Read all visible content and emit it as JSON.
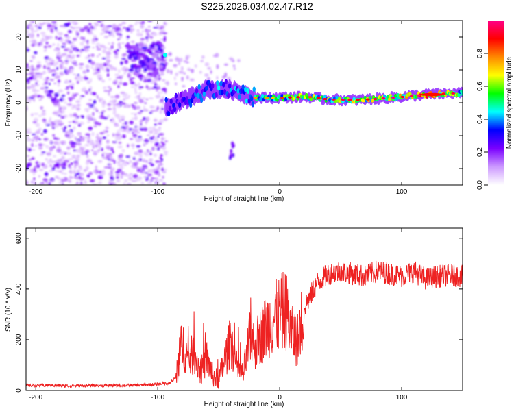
{
  "title": "S225.2026.034.02.47.R12",
  "chart_data": [
    {
      "type": "heatmap",
      "xlabel": "Height of straight line (km)",
      "ylabel": "Frequency (Hz)",
      "xlim": [
        -208,
        150
      ],
      "ylim": [
        -25,
        25
      ],
      "x_ticks": [
        -200,
        -100,
        0,
        100
      ],
      "y_ticks": [
        20,
        10,
        0,
        -10,
        -20
      ],
      "colorbar": {
        "label": "Normalized spectral amplitude",
        "range": [
          0.0,
          1.0
        ],
        "ticks": [
          0.0,
          0.2,
          0.4,
          0.6,
          0.8
        ],
        "colors": [
          "#ffffff",
          "#cc99ff",
          "#7a00ff",
          "#0000ff",
          "#00ffff",
          "#00ff00",
          "#ffff00",
          "#ff8800",
          "#ff0000",
          "#ff0088"
        ]
      },
      "ridge": [
        {
          "x": -93,
          "y": -1.5,
          "amp": 0.35
        },
        {
          "x": -80,
          "y": 0.5,
          "amp": 0.3
        },
        {
          "x": -60,
          "y": 4,
          "amp": 0.45
        },
        {
          "x": -40,
          "y": 4,
          "amp": 0.4
        },
        {
          "x": -20,
          "y": 1.5,
          "amp": 0.5
        },
        {
          "x": 0,
          "y": 1.5,
          "amp": 0.6
        },
        {
          "x": 20,
          "y": 1.8,
          "amp": 0.65
        },
        {
          "x": 40,
          "y": 1,
          "amp": 0.65
        },
        {
          "x": 60,
          "y": 0.8,
          "amp": 0.7
        },
        {
          "x": 80,
          "y": 1.2,
          "amp": 0.7
        },
        {
          "x": 100,
          "y": 1.8,
          "amp": 0.75
        },
        {
          "x": 120,
          "y": 2.5,
          "amp": 0.9
        },
        {
          "x": 150,
          "y": 3,
          "amp": 0.6
        }
      ]
    },
    {
      "type": "line",
      "xlabel": "Height of straight line (km)",
      "ylabel": "SNR (10 * v/v)",
      "xlim": [
        -208,
        150
      ],
      "ylim": [
        0,
        640
      ],
      "x_ticks": [
        -200,
        -100,
        0,
        100
      ],
      "y_ticks": [
        0,
        200,
        400,
        600
      ],
      "color": "#ee2222",
      "x": [
        -208,
        -190,
        -170,
        -150,
        -130,
        -110,
        -100,
        -90,
        -85,
        -80,
        -75,
        -70,
        -65,
        -60,
        -55,
        -50,
        -45,
        -40,
        -35,
        -30,
        -25,
        -20,
        -15,
        -10,
        -5,
        0,
        5,
        10,
        15,
        20,
        25,
        30,
        40,
        50,
        60,
        70,
        80,
        90,
        100,
        110,
        120,
        130,
        140,
        150
      ],
      "y": [
        20,
        20,
        18,
        20,
        20,
        22,
        25,
        30,
        50,
        190,
        120,
        150,
        70,
        130,
        60,
        40,
        120,
        200,
        90,
        60,
        200,
        180,
        220,
        260,
        280,
        300,
        320,
        220,
        200,
        330,
        370,
        420,
        460,
        470,
        460,
        450,
        470,
        460,
        450,
        470,
        440,
        450,
        455,
        450
      ]
    }
  ]
}
